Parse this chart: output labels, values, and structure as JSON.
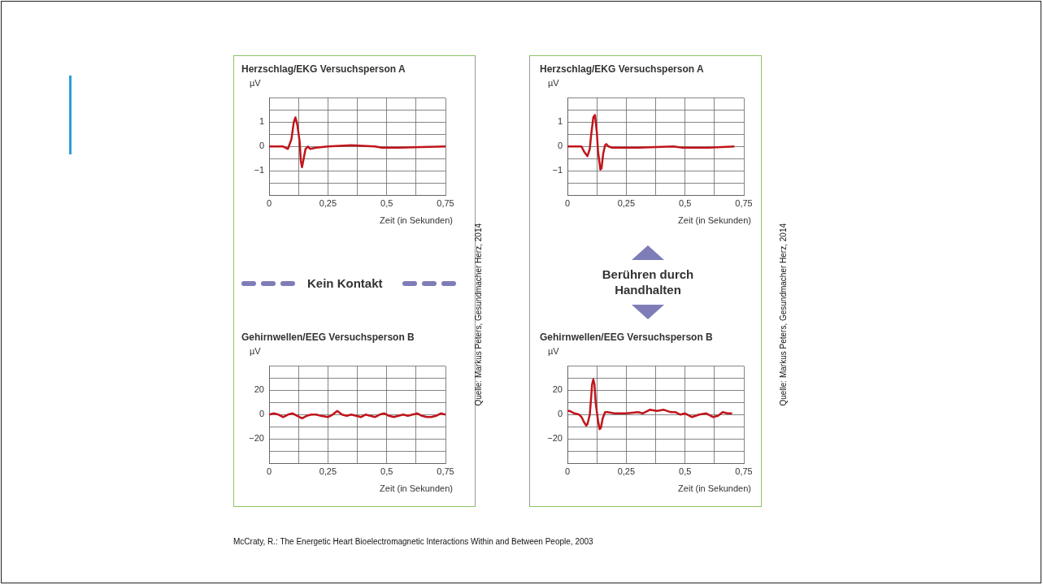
{
  "chart_data": [
    {
      "type": "line",
      "title": "Herzschlag/EKG Versuchsperson A",
      "ylabel": "µV",
      "xlabel": "Zeit (in Sekunden)",
      "grid": true,
      "xlim": [
        0,
        0.75
      ],
      "ylim": [
        -2,
        2
      ],
      "xticks": [
        {
          "value": 0,
          "label": "0"
        },
        {
          "value": 0.125,
          "label": null
        },
        {
          "value": 0.25,
          "label": "0,25"
        },
        {
          "value": 0.375,
          "label": null
        },
        {
          "value": 0.5,
          "label": "0,5"
        },
        {
          "value": 0.625,
          "label": null
        },
        {
          "value": 0.75,
          "label": "0,75"
        }
      ],
      "yticks": [
        {
          "value": -2,
          "label": null
        },
        {
          "value": -1.5,
          "label": null
        },
        {
          "value": -1,
          "label": "−1"
        },
        {
          "value": -0.5,
          "label": null
        },
        0,
        {
          "value": 0.5,
          "label": null
        },
        1,
        {
          "value": 1.5,
          "label": null
        },
        {
          "value": 2,
          "label": null
        }
      ],
      "series": [
        {
          "color": "#c0151b",
          "x": [
            0,
            0.06,
            0.08,
            0.095,
            0.105,
            0.112,
            0.12,
            0.13,
            0.135,
            0.14,
            0.147,
            0.155,
            0.165,
            0.175,
            0.2,
            0.25,
            0.35,
            0.45,
            0.48,
            0.55,
            0.75
          ],
          "values": [
            0,
            0,
            -0.1,
            0.3,
            1.0,
            1.2,
            0.9,
            0.2,
            -0.6,
            -0.85,
            -0.5,
            -0.1,
            0,
            -0.1,
            -0.05,
            0,
            0.05,
            0,
            -0.05,
            -0.05,
            0
          ]
        }
      ]
    },
    {
      "type": "line",
      "title": "Gehirnwellen/EEG Versuchsperson B",
      "ylabel": "µV",
      "xlabel": "Zeit (in Sekunden)",
      "grid": true,
      "xlim": [
        0,
        0.75
      ],
      "ylim": [
        -40,
        40
      ],
      "xticks": [
        {
          "value": 0,
          "label": "0"
        },
        {
          "value": 0.125,
          "label": null
        },
        {
          "value": 0.25,
          "label": "0,25"
        },
        {
          "value": 0.375,
          "label": null
        },
        {
          "value": 0.5,
          "label": "0,5"
        },
        {
          "value": 0.625,
          "label": null
        },
        {
          "value": 0.75,
          "label": "0,75"
        }
      ],
      "yticks": [
        {
          "value": -40,
          "label": null
        },
        {
          "value": -30,
          "label": null
        },
        {
          "value": -20,
          "label": "−20"
        },
        {
          "value": -10,
          "label": null
        },
        0,
        {
          "value": 10,
          "label": null
        },
        20,
        {
          "value": 30,
          "label": null
        },
        {
          "value": 40,
          "label": null
        }
      ],
      "annotations": [
        "Kein Kontakt",
        "Quelle: Markus Peters, Gesundmacher Herz, 2014"
      ],
      "series": [
        {
          "color": "#c0151b",
          "x": [
            0,
            0.02,
            0.04,
            0.06,
            0.08,
            0.1,
            0.12,
            0.14,
            0.16,
            0.18,
            0.2,
            0.22,
            0.25,
            0.27,
            0.29,
            0.31,
            0.33,
            0.35,
            0.37,
            0.39,
            0.41,
            0.43,
            0.45,
            0.47,
            0.49,
            0.51,
            0.53,
            0.55,
            0.57,
            0.59,
            0.61,
            0.63,
            0.65,
            0.67,
            0.69,
            0.71,
            0.73,
            0.75
          ],
          "values": [
            0,
            1,
            0,
            -2,
            0,
            1,
            -1,
            -3,
            -1,
            0,
            0,
            -1,
            -2,
            0,
            3,
            0,
            -1,
            0,
            -1,
            -2,
            0,
            -1,
            -2,
            0,
            1,
            -1,
            -2,
            -1,
            0,
            -1,
            0,
            1,
            -1,
            -2,
            -2,
            -1,
            1,
            0
          ]
        }
      ]
    },
    {
      "type": "line",
      "title": "Herzschlag/EKG Versuchsperson A",
      "ylabel": "µV",
      "xlabel": "Zeit (in Sekunden)",
      "grid": true,
      "xlim": [
        0,
        0.75
      ],
      "ylim": [
        -2,
        2
      ],
      "xticks": [
        {
          "value": 0,
          "label": "0"
        },
        {
          "value": 0.125,
          "label": null
        },
        {
          "value": 0.25,
          "label": "0,25"
        },
        {
          "value": 0.375,
          "label": null
        },
        {
          "value": 0.5,
          "label": "0,5"
        },
        {
          "value": 0.625,
          "label": null
        },
        {
          "value": 0.75,
          "label": "0,75"
        }
      ],
      "yticks": [
        {
          "value": -2,
          "label": null
        },
        {
          "value": -1.5,
          "label": null
        },
        {
          "value": -1,
          "label": "−1"
        },
        {
          "value": -0.5,
          "label": null
        },
        0,
        {
          "value": 0.5,
          "label": null
        },
        1,
        {
          "value": 1.5,
          "label": null
        },
        {
          "value": 2,
          "label": null
        }
      ],
      "series": [
        {
          "color": "#c0151b",
          "x": [
            0,
            0.04,
            0.06,
            0.07,
            0.085,
            0.095,
            0.1,
            0.11,
            0.117,
            0.125,
            0.13,
            0.14,
            0.145,
            0.152,
            0.16,
            0.165,
            0.175,
            0.19,
            0.3,
            0.45,
            0.49,
            0.6,
            0.71
          ],
          "values": [
            0,
            0,
            0,
            -0.2,
            -0.4,
            -0.1,
            0.4,
            1.2,
            1.3,
            0.6,
            -0.2,
            -0.95,
            -0.9,
            -0.3,
            0.05,
            0.1,
            0,
            -0.05,
            -0.05,
            0,
            -0.05,
            -0.05,
            0
          ]
        }
      ]
    },
    {
      "type": "line",
      "title": "Gehirnwellen/EEG Versuchsperson B",
      "ylabel": "µV",
      "xlabel": "Zeit (in Sekunden)",
      "grid": true,
      "xlim": [
        0,
        0.75
      ],
      "ylim": [
        -40,
        40
      ],
      "xticks": [
        {
          "value": 0,
          "label": "0"
        },
        {
          "value": 0.125,
          "label": null
        },
        {
          "value": 0.25,
          "label": "0,25"
        },
        {
          "value": 0.375,
          "label": null
        },
        {
          "value": 0.5,
          "label": "0,5"
        },
        {
          "value": 0.625,
          "label": null
        },
        {
          "value": 0.75,
          "label": "0,75"
        }
      ],
      "yticks": [
        {
          "value": -40,
          "label": null
        },
        {
          "value": -30,
          "label": null
        },
        {
          "value": -20,
          "label": "−20"
        },
        {
          "value": -10,
          "label": null
        },
        0,
        {
          "value": 10,
          "label": null
        },
        20,
        {
          "value": 30,
          "label": null
        },
        {
          "value": 40,
          "label": null
        }
      ],
      "annotations": [
        "Berühren durch Handhalten",
        "Quelle: Markus Peters, Gesundmacher Herz, 2014",
        "McCraty, R.: The Energetic Heart Bioelectromagnetic Interactions Within and Between People, 2003"
      ],
      "series": [
        {
          "color": "#c0151b",
          "x": [
            0,
            0.01,
            0.03,
            0.05,
            0.06,
            0.07,
            0.08,
            0.085,
            0.095,
            0.1,
            0.105,
            0.11,
            0.115,
            0.12,
            0.13,
            0.137,
            0.142,
            0.15,
            0.16,
            0.17,
            0.2,
            0.25,
            0.3,
            0.32,
            0.35,
            0.38,
            0.41,
            0.44,
            0.46,
            0.48,
            0.5,
            0.53,
            0.56,
            0.59,
            0.62,
            0.64,
            0.66,
            0.68,
            0.7
          ],
          "values": [
            3,
            3,
            1,
            0,
            -2,
            -6,
            -9,
            -8,
            0,
            12,
            25,
            29,
            25,
            10,
            -5,
            -12,
            -11,
            -3,
            2,
            2,
            1,
            1,
            2,
            1,
            4,
            3,
            4,
            2,
            2,
            0,
            1,
            -2,
            0,
            1,
            -2,
            -1,
            2,
            1,
            1
          ]
        }
      ]
    }
  ]
}
